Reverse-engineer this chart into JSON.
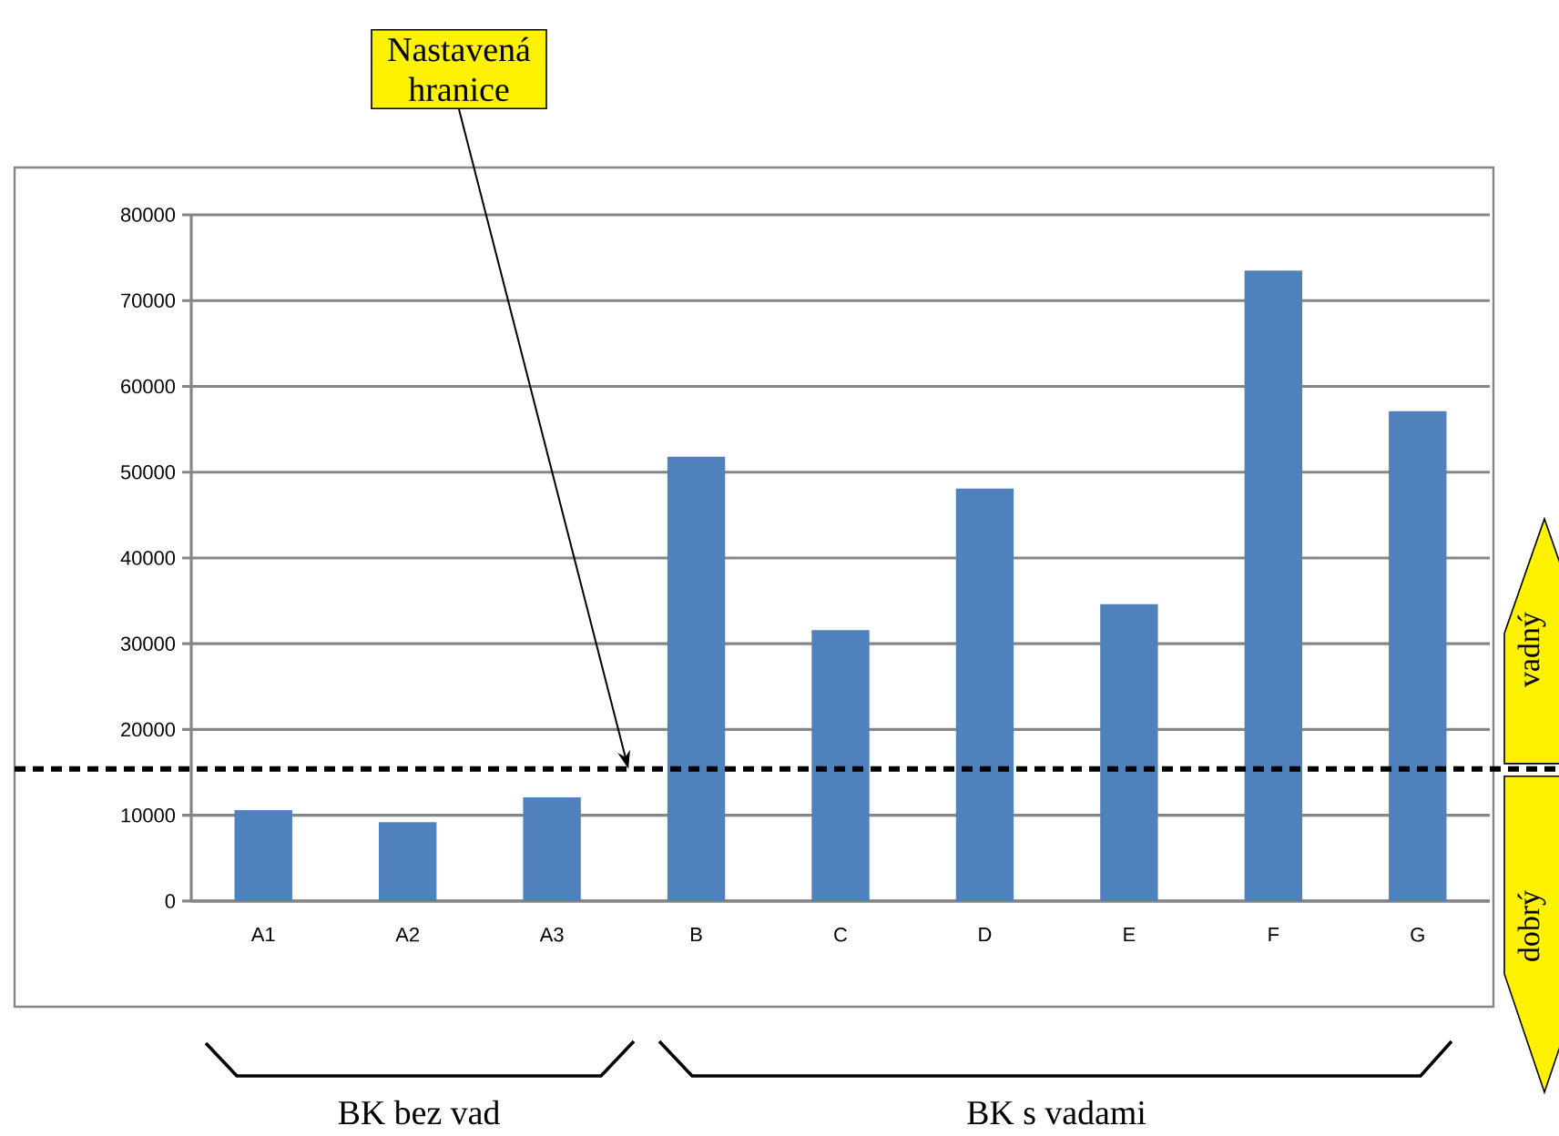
{
  "chart_data": {
    "type": "bar",
    "categories": [
      "A1",
      "A2",
      "A3",
      "B",
      "C",
      "D",
      "E",
      "F",
      "G"
    ],
    "values": [
      10600,
      9200,
      12100,
      51800,
      31600,
      48100,
      34600,
      73500,
      57100
    ],
    "color": "#4f81bd",
    "ylim": [
      0,
      80000
    ],
    "yticks": [
      0,
      10000,
      20000,
      30000,
      40000,
      50000,
      60000,
      70000,
      80000
    ],
    "grid": "y",
    "ref_lines": [
      {
        "axis": "y",
        "value": 15400,
        "label": "Nastavená hranice",
        "color": "#000000",
        "line_style": "dashed"
      }
    ],
    "annotations": [
      "vadný",
      "dobrý",
      "BK bez vad",
      "BK s vadami"
    ]
  }
}
